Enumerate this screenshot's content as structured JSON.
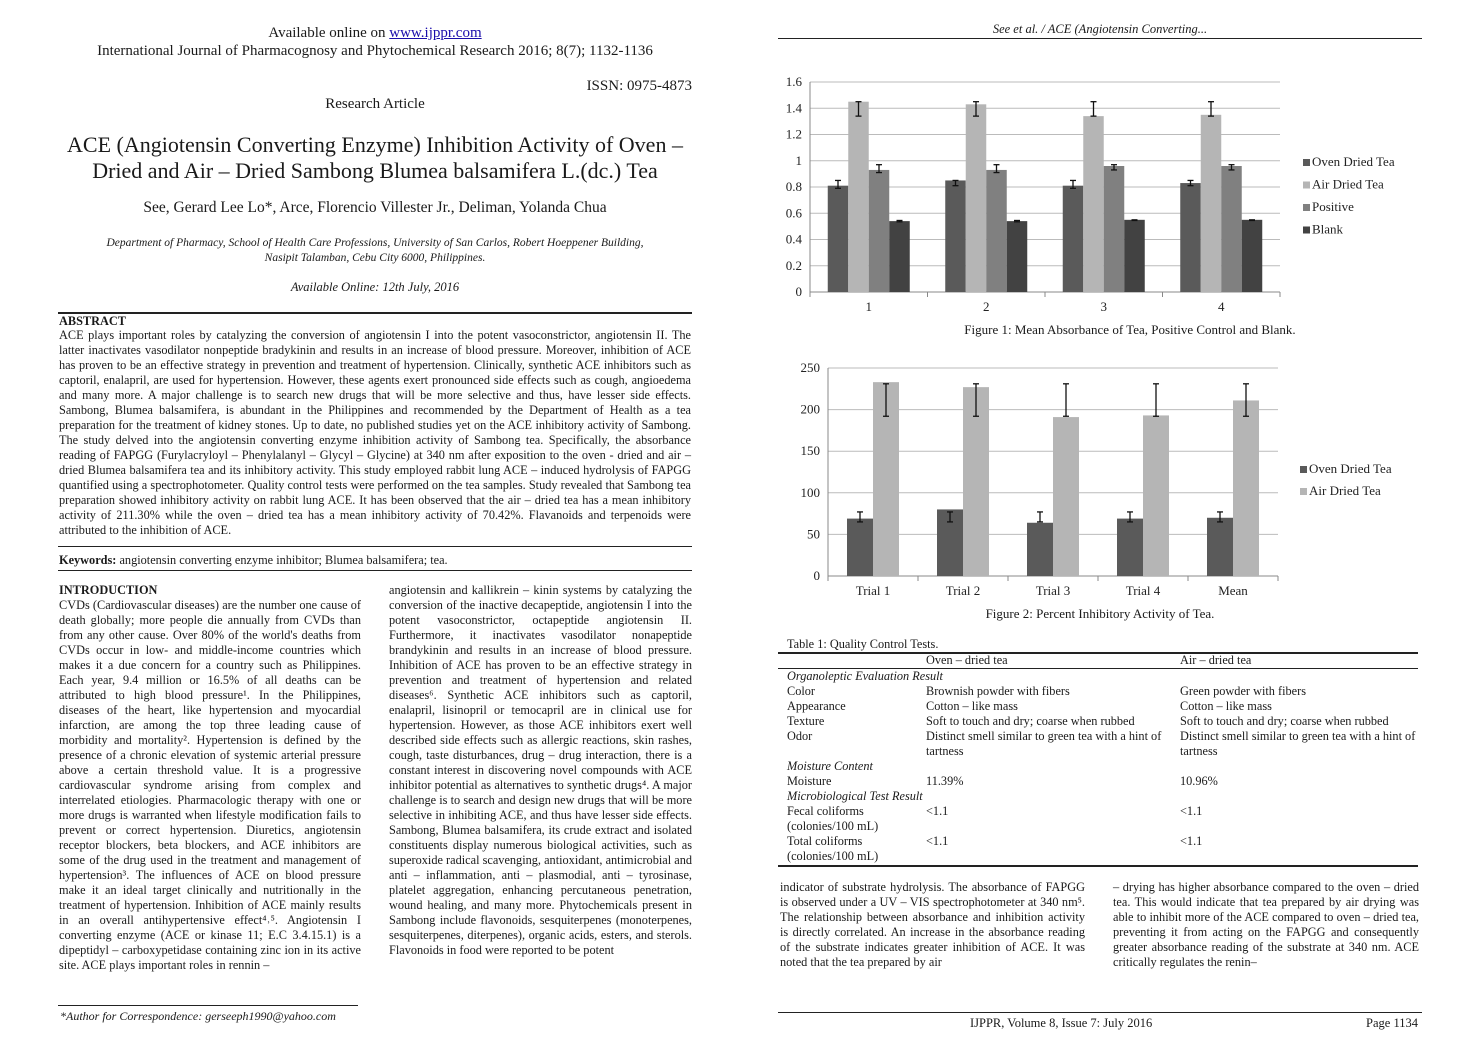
{
  "left_page": {
    "online_prefix": "Available online on ",
    "online_url": "www.ijppr.com",
    "journal_line": "International Journal of Pharmacognosy and Phytochemical Research 2016; 8(7); 1132-1136",
    "issn": "ISSN: 0975-4873",
    "article_type": "Research Article",
    "title_line1": "ACE (Angiotensin Converting Enzyme) Inhibition Activity of Oven –",
    "title_line2": "Dried and Air – Dried Sambong Blumea balsamifera L.(dc.) Tea",
    "authors": "See, Gerard Lee Lo*, Arce, Florencio Villester Jr., Deliman, Yolanda Chua",
    "affiliation_line1": "Department of Pharmacy, School of Health Care Professions, University of San Carlos, Robert Hoeppener Building,",
    "affiliation_line2": "Nasipit Talamban, Cebu City 6000, Philippines.",
    "available_online": "Available Online: 12th July, 2016",
    "abstract_heading": "ABSTRACT",
    "abstract_text": "ACE plays important roles by catalyzing the conversion of angiotensin I into the potent vasoconstrictor, angiotensin II. The latter inactivates vasodilator nonpeptide bradykinin and results in an increase of blood pressure. Moreover, inhibition of ACE has proven to be an effective strategy in prevention and treatment of hypertension. Clinically, synthetic ACE inhibitors such as captoril, enalapril, are used for hypertension. However, these agents exert pronounced side effects such as cough, angioedema and many more. A major challenge is to search new drugs that will be more selective and thus, have lesser side effects. Sambong, Blumea balsamifera, is abundant in the Philippines and recommended by the Department of Health as a tea preparation for the treatment of kidney stones. Up to date, no published studies yet on the ACE inhibitory activity of Sambong. The study delved into the angiotensin converting enzyme inhibition activity of Sambong tea. Specifically, the absorbance reading of FAPGG (Furylacryloyl – Phenylalanyl – Glycyl – Glycine) at 340 nm after exposition to the oven - dried and air – dried Blumea balsamifera tea and its inhibitory activity. This study employed rabbit lung ACE – induced hydrolysis of FAPGG quantified using a spectrophotometer. Quality control tests were performed on the tea samples. Study revealed that Sambong tea preparation showed inhibitory activity on rabbit lung ACE. It has been observed that the air – dried tea has a mean inhibitory activity of 211.30% while the oven – dried tea has a mean inhibitory activity of 70.42%. Flavanoids and terpenoids were attributed to the inhibition of ACE.",
    "keywords_label": "Keywords:",
    "keywords_text": " angiotensin converting enzyme inhibitor; Blumea balsamifera; tea.",
    "intro_heading": "INTRODUCTION",
    "intro_col1": "CVDs (Cardiovascular diseases) are the number one cause of death globally; more people die annually from CVDs than from any other cause. Over 80% of the world's deaths from CVDs occur in low- and middle-income countries which makes it a due concern for a country such as Philippines. Each year, 9.4 million or 16.5% of all deaths can be attributed to high blood pressure¹. In the Philippines, diseases of the heart, like hypertension and myocardial infarction, are among the top three leading cause of morbidity and mortality². Hypertension is defined by the presence of a chronic elevation of systemic arterial pressure above a certain threshold value. It is a progressive cardiovascular syndrome arising from complex and interrelated etiologies. Pharmacologic therapy with one or more drugs is warranted when lifestyle modification fails to prevent or correct hypertension. Diuretics, angiotensin receptor blockers, beta blockers, and ACE inhibitors are some of the drug used in the treatment and management of hypertension³. The influences of ACE on blood pressure make it an ideal target clinically and nutritionally in the treatment of hypertension. Inhibition of ACE mainly results in an overall antihypertensive effect⁴˒⁵. Angiotensin I converting enzyme (ACE or kinase 11; E.C 3.4.15.1) is a dipeptidyl – carboxypetidase containing zinc ion in its active site. ACE plays important roles in rennin –",
    "intro_col2": "angiotensin and kallikrein – kinin systems by catalyzing the conversion of the inactive decapeptide, angiotensin I into the potent vasoconstrictor, octapeptide angiotensin II. Furthermore, it inactivates vasodilator nonapeptide brandykinin and results in an increase of blood pressure. Inhibition of ACE has proven to be an effective strategy in prevention and treatment of hypertension and related diseases⁶. Synthetic ACE inhibitors such as captoril, enalapril, lisinopril or temocapril are in clinical use for hypertension. However, as those ACE inhibitors exert well described side effects such as allergic reactions, skin rashes, cough, taste disturbances, drug – drug interaction, there is a constant interest in discovering novel compounds with ACE inhibitor potential as alternatives to synthetic drugs⁴. A major challenge is to search and design new drugs that will be more selective in inhibiting ACE, and thus have lesser side effects. Sambong, Blumea balsamifera, its crude extract and isolated constituents display numerous biological activities, such as superoxide radical scavenging, antioxidant, antimicrobial and anti – inflammation, anti – plasmodial, anti – tyrosinase, platelet aggregation, enhancing percutaneous penetration, wound healing, and many more. Phytochemicals present in Sambong include flavonoids, sesquiterpenes (monoterpenes, sesquiterpenes, diterpenes), organic acids, esters, and sterols. Flavonoids in food were reported to be potent",
    "correspondence": "*Author for Correspondence: gerseeph1990@yahoo.com"
  },
  "right_page": {
    "running_header": "See et al. / ACE (Angiotensin Converting...",
    "figure1_caption": "Figure 1: Mean Absorbance of Tea, Positive Control and Blank.",
    "figure2_caption": "Figure 2: Percent Inhibitory Activity of Tea.",
    "table": {
      "title": "Table 1: Quality Control Tests.",
      "headers": [
        "",
        "Oven – dried tea",
        "Air – dried tea"
      ],
      "rows": [
        {
          "section": "Organoleptic Evaluation Result"
        },
        {
          "cells": [
            "Color",
            "Brownish powder with fibers",
            "Green powder with fibers"
          ]
        },
        {
          "cells": [
            "Appearance",
            "Cotton – like mass",
            "Cotton – like mass"
          ]
        },
        {
          "cells": [
            "Texture",
            "Soft to touch and dry; coarse when rubbed",
            "Soft to touch and dry; coarse when rubbed"
          ]
        },
        {
          "cells": [
            "Odor",
            "Distinct smell similar to green tea with a hint of tartness",
            "Distinct smell similar to green tea with a hint of tartness"
          ]
        },
        {
          "section": "Moisture Content"
        },
        {
          "cells": [
            "Moisture",
            "11.39%",
            "10.96%"
          ]
        },
        {
          "section": "Microbiological Test Result"
        },
        {
          "cells": [
            "Fecal coliforms (colonies/100 mL)",
            "<1.1",
            "<1.1"
          ]
        },
        {
          "cells": [
            "Total coliforms (colonies/100 mL)",
            "<1.1",
            "<1.1"
          ]
        }
      ]
    },
    "body_col1": "indicator of substrate hydrolysis. The absorbance of FAPGG is observed under a UV – VIS spectrophotometer at 340 nm⁵. The relationship between absorbance and inhibition activity is directly correlated. An increase in the absorbance reading of the substrate indicates greater inhibition of ACE. It was noted that the tea prepared by air",
    "body_col2": "– drying has higher absorbance compared to the oven – dried tea. This would indicate that tea prepared by air drying was able to inhibit more of the ACE compared to oven – dried tea, preventing it from acting on the FAPGG and consequently greater absorbance reading of the substrate at 340 nm. ACE critically regulates the renin–",
    "footer_journal": "IJPPR, Volume 8, Issue 7: July 2016",
    "footer_page": "Page 1134"
  },
  "chart_data": [
    {
      "type": "bar",
      "title": "Figure 1: Mean Absorbance of Tea, Positive Control and Blank.",
      "categories": [
        "1",
        "2",
        "3",
        "4"
      ],
      "ylim": [
        0,
        1.6
      ],
      "yticks": [
        "0",
        "0.2",
        "0.4",
        "0.6",
        "0.8",
        "1",
        "1.2",
        "1.4",
        "1.6"
      ],
      "grid": true,
      "legend": "right",
      "series": [
        {
          "name": "Oven Dried Tea",
          "color": "#5a5a5a",
          "values": [
            0.81,
            0.85,
            0.81,
            0.83
          ],
          "error_low": [
            0.79,
            0.81,
            0.79,
            0.81
          ],
          "error_high": [
            0.85,
            0.85,
            0.85,
            0.85
          ]
        },
        {
          "name": "Air Dried Tea",
          "color": "#b5b5b5",
          "values": [
            1.45,
            1.43,
            1.34,
            1.35
          ],
          "error_low": [
            1.34,
            1.34,
            1.34,
            1.34
          ],
          "error_high": [
            1.45,
            1.45,
            1.45,
            1.45
          ]
        },
        {
          "name": "Positive",
          "color": "#808080",
          "values": [
            0.93,
            0.93,
            0.96,
            0.96
          ],
          "error_low": [
            0.91,
            0.91,
            0.93,
            0.93
          ],
          "error_high": [
            0.97,
            0.97,
            0.97,
            0.97
          ]
        },
        {
          "name": "Blank",
          "color": "#424242",
          "values": [
            0.54,
            0.54,
            0.55,
            0.55
          ],
          "error_low": [
            0.535,
            0.535,
            0.545,
            0.545
          ],
          "error_high": [
            0.545,
            0.545,
            0.55,
            0.55
          ]
        }
      ]
    },
    {
      "type": "bar",
      "title": "Figure 2: Percent Inhibitory Activity of Tea.",
      "categories": [
        "Trial 1",
        "Trial 2",
        "Trial 3",
        "Trial 4",
        "Mean"
      ],
      "ylim": [
        0,
        250
      ],
      "yticks": [
        "0",
        "50",
        "100",
        "150",
        "200",
        "250"
      ],
      "grid": true,
      "legend": "right",
      "series": [
        {
          "name": "Oven Dried Tea",
          "color": "#5a5a5a",
          "values": [
            69,
            80,
            64,
            69,
            70
          ],
          "error_low": [
            65,
            65,
            65,
            65,
            65
          ],
          "error_high": [
            77,
            77,
            77,
            77,
            77
          ]
        },
        {
          "name": "Air Dried Tea",
          "color": "#b5b5b5",
          "values": [
            233,
            227,
            191,
            193,
            211
          ],
          "error_low": [
            192,
            192,
            192,
            192,
            192
          ],
          "error_high": [
            231,
            231,
            231,
            231,
            231
          ]
        }
      ]
    }
  ]
}
